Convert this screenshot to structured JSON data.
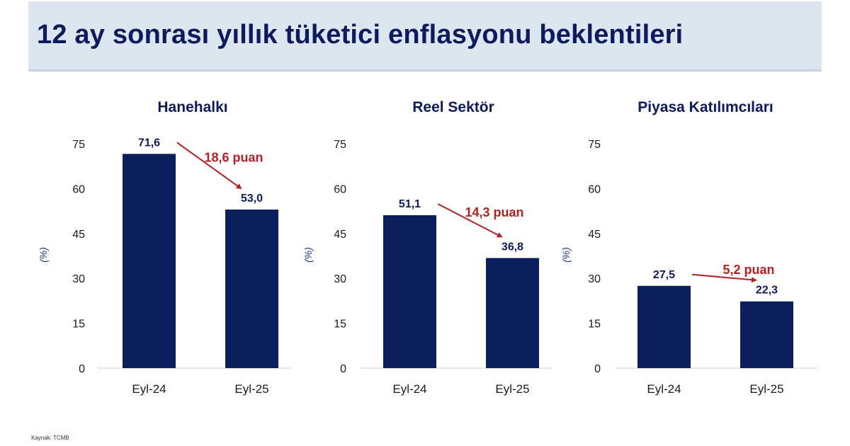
{
  "title": "12 ay sonrası yıllık tüketici enflasyonu beklentileri",
  "source": "Kaynak: TCMB",
  "colors": {
    "bar": "#0b1f5c",
    "annotation": "#b22222",
    "header_bg": "#dce6f1",
    "title": "#0d1b5e"
  },
  "chart_data": [
    {
      "type": "bar",
      "title": "Hanehalkı",
      "categories": [
        "Eyl-24",
        "Eyl-25"
      ],
      "values": [
        71.6,
        53.0
      ],
      "value_labels": [
        "71,6",
        "53,0"
      ],
      "ylabel": "(%)",
      "ylim": [
        0,
        75
      ],
      "yticks": [
        0,
        15,
        30,
        45,
        60,
        75
      ],
      "change_label": "18,6 puan",
      "grid": false
    },
    {
      "type": "bar",
      "title": "Reel Sektör",
      "categories": [
        "Eyl-24",
        "Eyl-25"
      ],
      "values": [
        51.1,
        36.8
      ],
      "value_labels": [
        "51,1",
        "36,8"
      ],
      "ylabel": "(%)",
      "ylim": [
        0,
        75
      ],
      "yticks": [
        0,
        15,
        30,
        45,
        60,
        75
      ],
      "change_label": "14,3 puan",
      "grid": false
    },
    {
      "type": "bar",
      "title": "Piyasa Katılımcıları",
      "categories": [
        "Eyl-24",
        "Eyl-25"
      ],
      "values": [
        27.5,
        22.3
      ],
      "value_labels": [
        "27,5",
        "22,3"
      ],
      "ylabel": "(%)",
      "ylim": [
        0,
        75
      ],
      "yticks": [
        0,
        15,
        30,
        45,
        60,
        75
      ],
      "change_label": "5,2 puan",
      "grid": false
    }
  ]
}
